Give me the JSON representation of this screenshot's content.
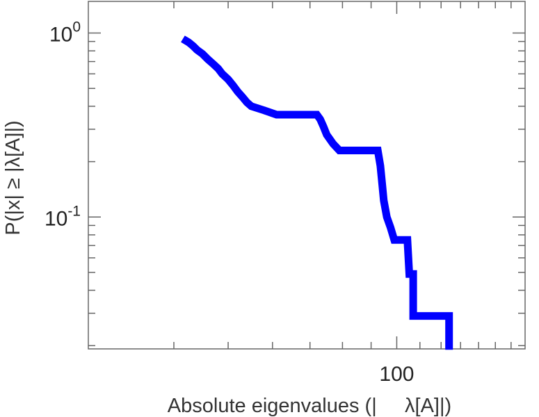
{
  "chart_data": {
    "type": "line",
    "subtype": "ccdf-step",
    "xscale": "log",
    "yscale": "log",
    "xlabel": "Absolute eigenvalues (|     λ[A]|)",
    "ylabel": "P(|x| ≥ |λ[A]|)",
    "xlim": [
      30,
      170
    ],
    "ylim": [
      0.019,
      1.5
    ],
    "x_tick_labels": [
      {
        "value": 100,
        "label": "100"
      }
    ],
    "y_tick_labels": [
      {
        "value": 1,
        "base": "10",
        "exp": "0"
      },
      {
        "value": 0.1,
        "base": "10",
        "exp": "-1"
      }
    ],
    "line_color": "#0000ff",
    "series": [
      {
        "points": [
          [
            41.5,
            0.93
          ],
          [
            42.5,
            0.89
          ],
          [
            43.3,
            0.85
          ],
          [
            44.0,
            0.81
          ],
          [
            45.0,
            0.77
          ],
          [
            46.0,
            0.72
          ],
          [
            47.0,
            0.68
          ],
          [
            48.0,
            0.64
          ],
          [
            48.8,
            0.6
          ],
          [
            50.0,
            0.56
          ],
          [
            51.0,
            0.52
          ],
          [
            52.0,
            0.48
          ],
          [
            53.0,
            0.45
          ],
          [
            54.0,
            0.42
          ],
          [
            55.0,
            0.4
          ],
          [
            58.0,
            0.38
          ],
          [
            61.0,
            0.36
          ],
          [
            72.0,
            0.36
          ],
          [
            73.0,
            0.34
          ],
          [
            74.0,
            0.31
          ],
          [
            75.0,
            0.28
          ],
          [
            77.0,
            0.25
          ],
          [
            79.0,
            0.23
          ],
          [
            92.5,
            0.23
          ],
          [
            93.5,
            0.19
          ],
          [
            94.2,
            0.15
          ],
          [
            94.8,
            0.123
          ],
          [
            96.0,
            0.1
          ],
          [
            97.5,
            0.0875
          ],
          [
            99.0,
            0.075
          ],
          [
            104.5,
            0.075
          ],
          [
            105.3,
            0.049
          ],
          [
            107.0,
            0.049
          ],
          [
            107.0,
            0.029
          ],
          [
            124.0,
            0.029
          ],
          [
            124.0,
            0.019
          ]
        ]
      }
    ]
  }
}
